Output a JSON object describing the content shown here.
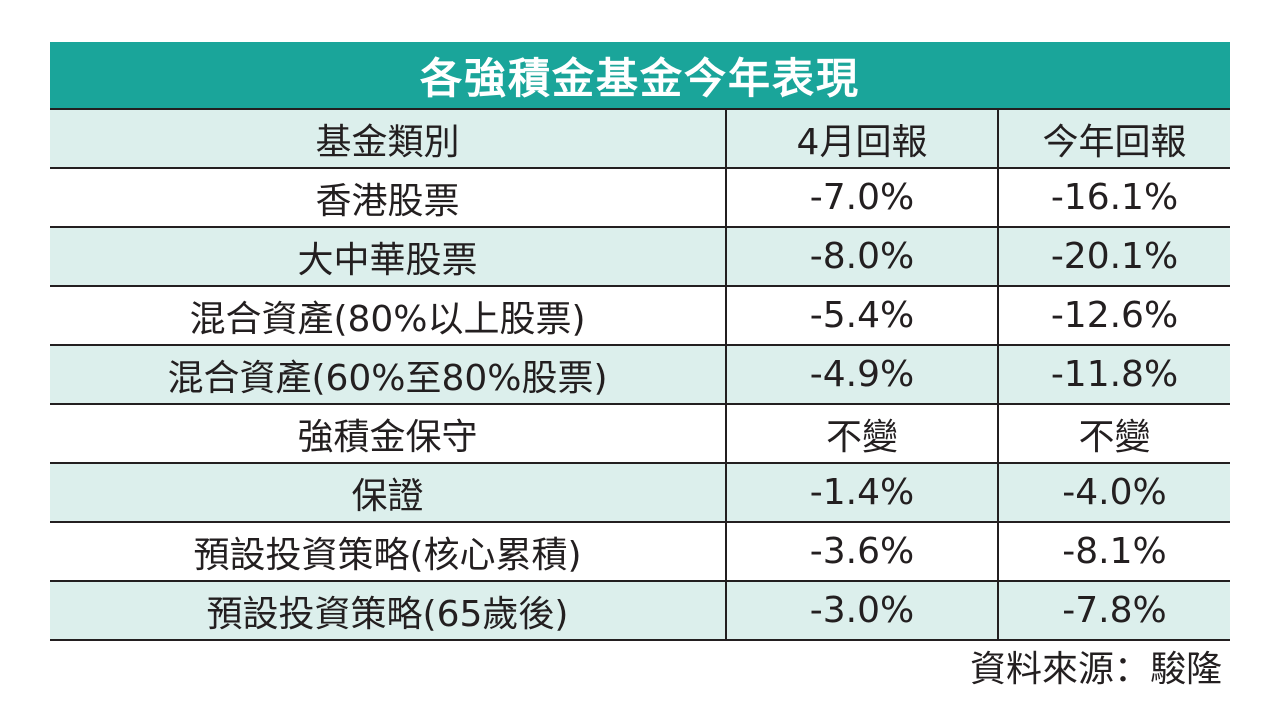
{
  "title": "各強積金基金今年表現",
  "source": "資料來源：駿隆",
  "colors": {
    "title_bg": "#1aa59a",
    "shaded_row": "#dcefec",
    "text": "#231f20"
  },
  "chart_data": {
    "type": "table",
    "title": "各強積金基金今年表現",
    "columns": [
      "基金類別",
      "4月回報",
      "今年回報"
    ],
    "rows": [
      {
        "category": "香港股票",
        "april": "-7.0%",
        "ytd": "-16.1%"
      },
      {
        "category": "大中華股票",
        "april": "-8.0%",
        "ytd": "-20.1%"
      },
      {
        "category": "混合資產(80%以上股票)",
        "april": "-5.4%",
        "ytd": "-12.6%"
      },
      {
        "category": "混合資產(60%至80%股票)",
        "april": "-4.9%",
        "ytd": "-11.8%"
      },
      {
        "category": "強積金保守",
        "april": "不變",
        "ytd": "不變"
      },
      {
        "category": "保證",
        "april": "-1.4%",
        "ytd": "-4.0%"
      },
      {
        "category": "預設投資策略(核心累積)",
        "april": "-3.6%",
        "ytd": "-8.1%"
      },
      {
        "category": "預設投資策略(65歲後)",
        "april": "-3.0%",
        "ytd": "-7.8%"
      }
    ],
    "source": "資料來源：駿隆"
  }
}
